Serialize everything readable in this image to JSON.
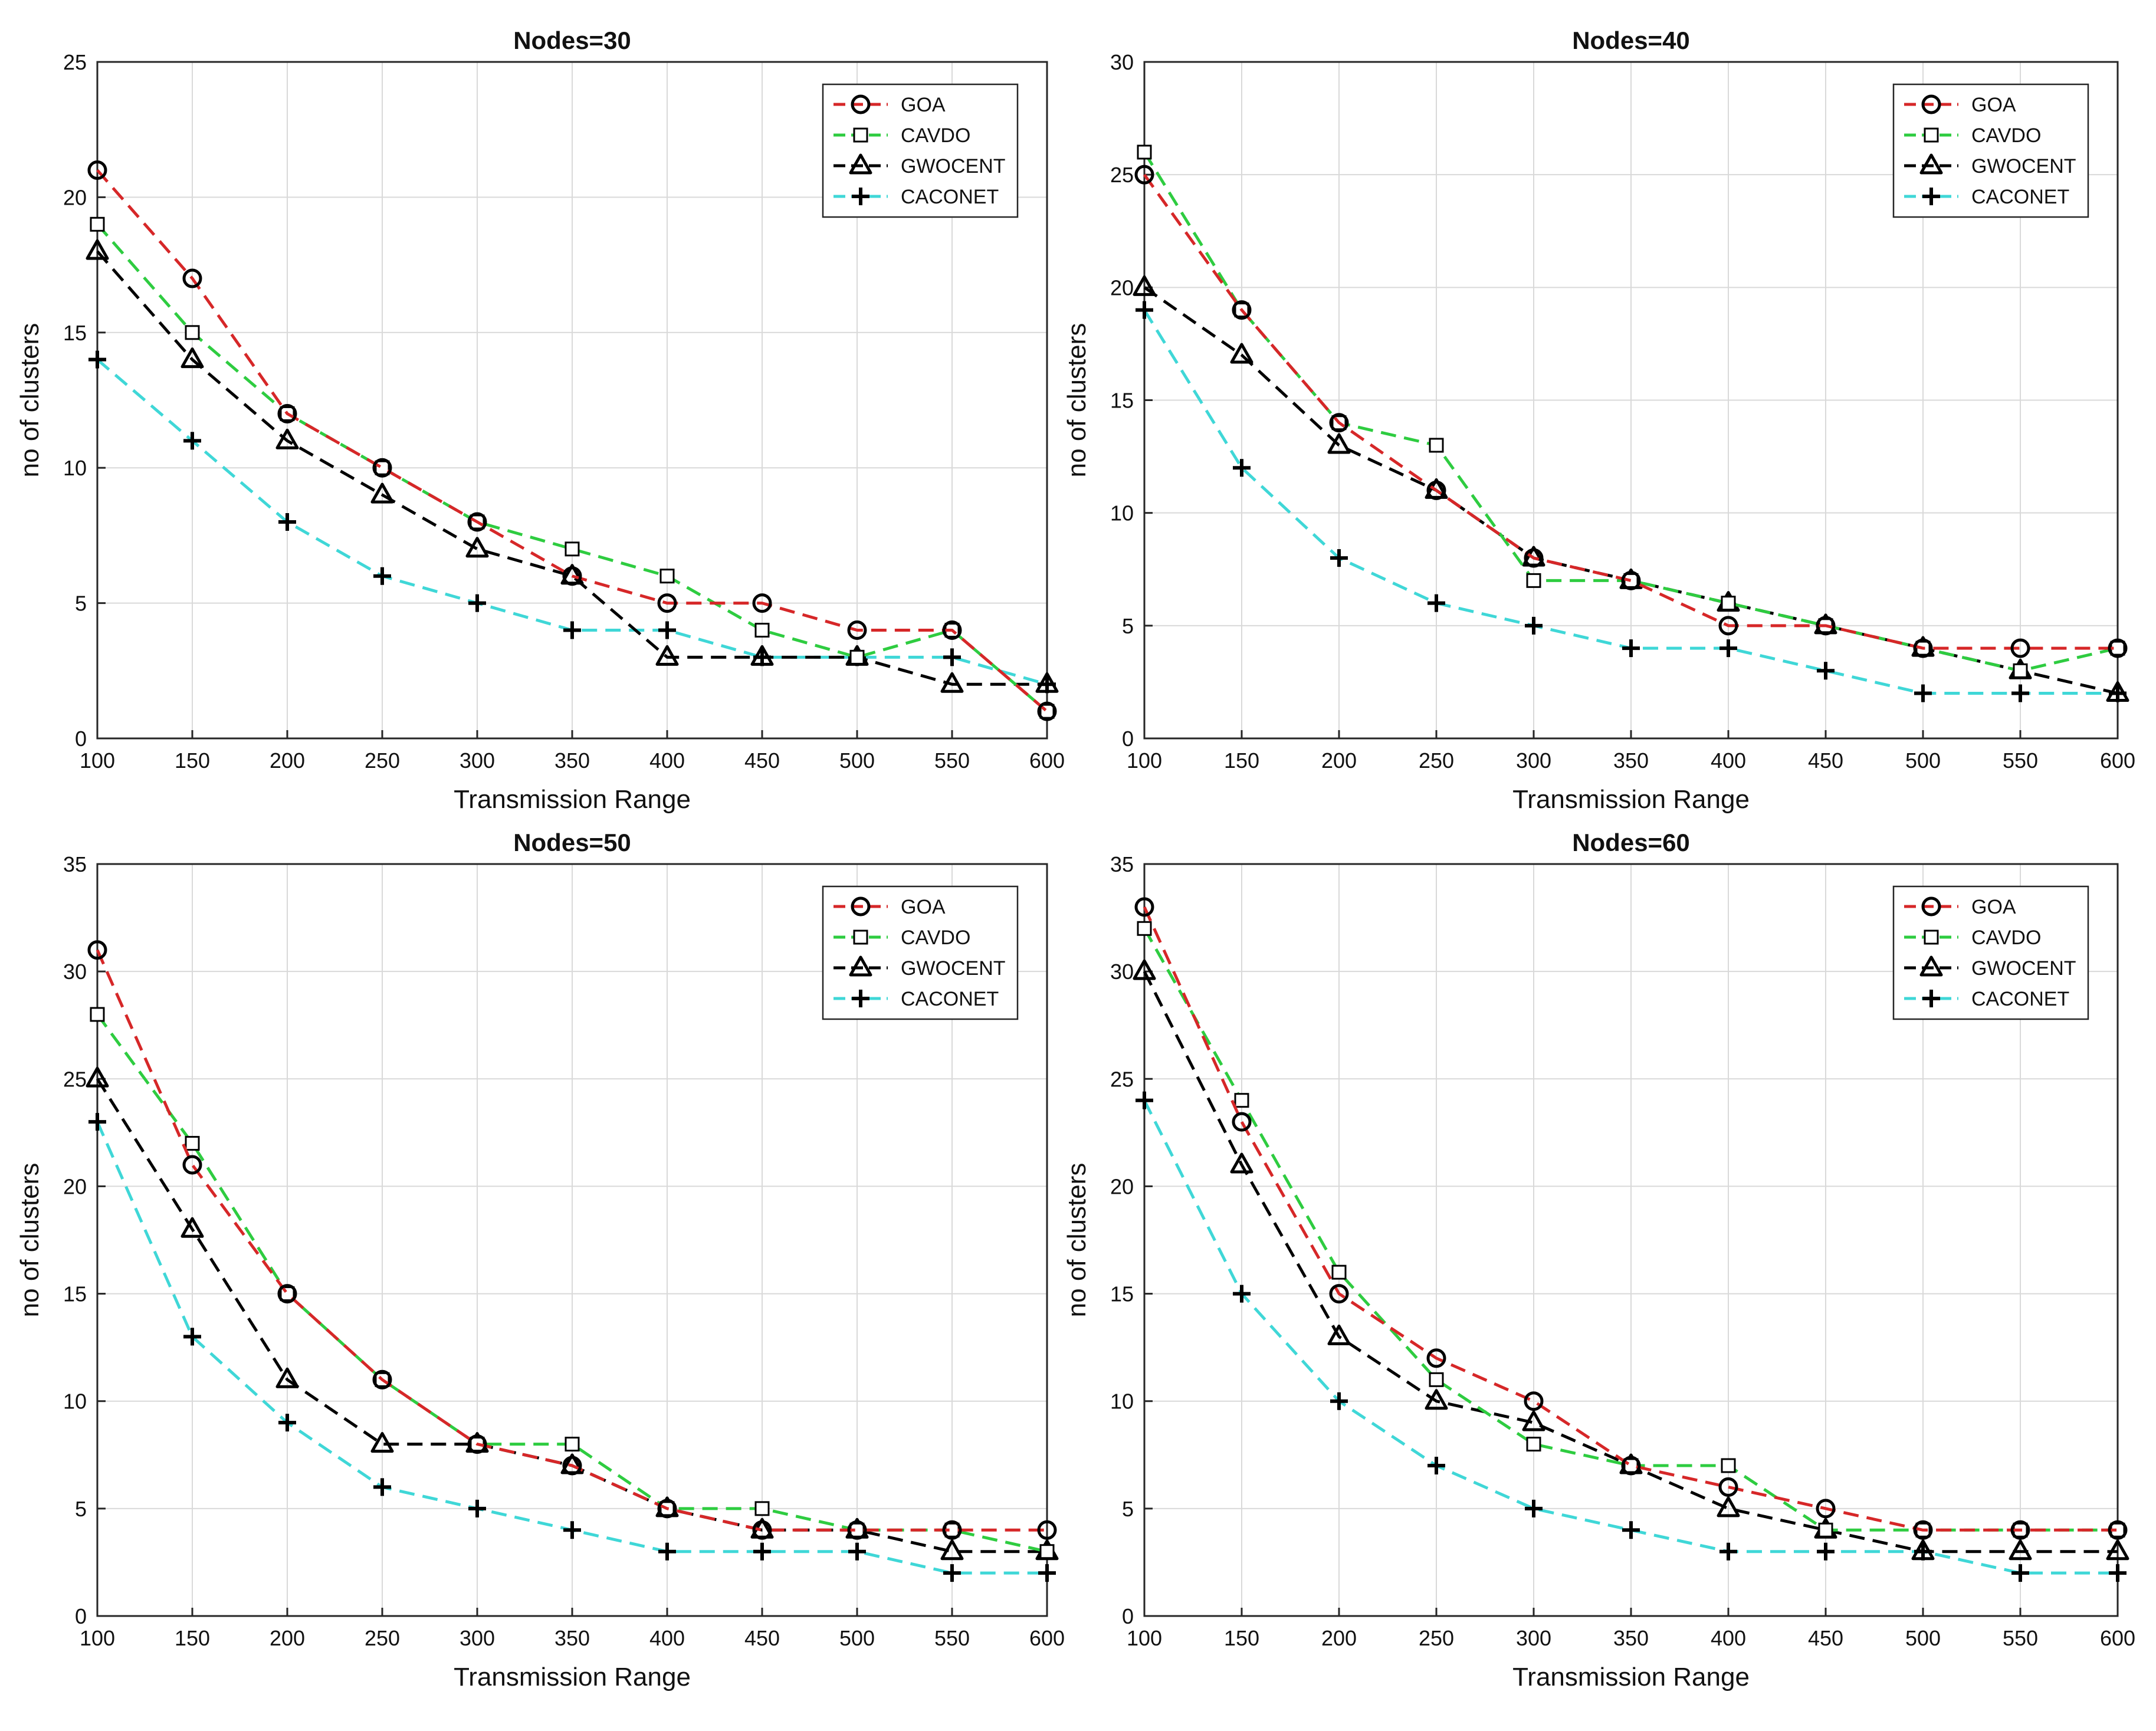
{
  "colors": {
    "GOA": "#d62728",
    "CAVDO": "#2ecc40",
    "GWOCENT": "#000000",
    "CACONET": "#3fd7d7",
    "grid": "#d9d9d9",
    "axis": "#262626"
  },
  "chart_data": [
    {
      "type": "line",
      "title": "Nodes=30",
      "xlabel": "Transmission Range",
      "ylabel": "no of clusters",
      "x": [
        100,
        150,
        200,
        250,
        300,
        350,
        400,
        450,
        500,
        550,
        600
      ],
      "xlim": [
        100,
        600
      ],
      "ylim": [
        0,
        25
      ],
      "yticks": [
        0,
        5,
        10,
        15,
        20,
        25
      ],
      "grid": true,
      "legend_position": "top-right",
      "series": [
        {
          "name": "GOA",
          "marker": "circle",
          "values": [
            21,
            17,
            12,
            10,
            8,
            6,
            5,
            5,
            4,
            4,
            1
          ]
        },
        {
          "name": "CAVDO",
          "marker": "square",
          "values": [
            19,
            15,
            12,
            10,
            8,
            7,
            6,
            4,
            3,
            4,
            1
          ]
        },
        {
          "name": "GWOCENT",
          "marker": "triangle",
          "values": [
            18,
            14,
            11,
            9,
            7,
            6,
            3,
            3,
            3,
            2,
            2
          ]
        },
        {
          "name": "CACONET",
          "marker": "plus",
          "values": [
            14,
            11,
            8,
            6,
            5,
            4,
            4,
            3,
            3,
            3,
            2
          ]
        }
      ]
    },
    {
      "type": "line",
      "title": "Nodes=40",
      "xlabel": "Transmission Range",
      "ylabel": "no of clusters",
      "x": [
        100,
        150,
        200,
        250,
        300,
        350,
        400,
        450,
        500,
        550,
        600
      ],
      "xlim": [
        100,
        600
      ],
      "ylim": [
        0,
        30
      ],
      "yticks": [
        0,
        5,
        10,
        15,
        20,
        25,
        30
      ],
      "grid": true,
      "legend_position": "top-right",
      "series": [
        {
          "name": "GOA",
          "marker": "circle",
          "values": [
            25,
            19,
            14,
            11,
            8,
            7,
            5,
            5,
            4,
            4,
            4
          ]
        },
        {
          "name": "CAVDO",
          "marker": "square",
          "values": [
            26,
            19,
            14,
            13,
            7,
            7,
            6,
            5,
            4,
            3,
            4
          ]
        },
        {
          "name": "GWOCENT",
          "marker": "triangle",
          "values": [
            20,
            17,
            13,
            11,
            8,
            7,
            6,
            5,
            4,
            3,
            2
          ]
        },
        {
          "name": "CACONET",
          "marker": "plus",
          "values": [
            19,
            12,
            8,
            6,
            5,
            4,
            4,
            3,
            2,
            2,
            2
          ]
        }
      ]
    },
    {
      "type": "line",
      "title": "Nodes=50",
      "xlabel": "Transmission Range",
      "ylabel": "no of clusters",
      "x": [
        100,
        150,
        200,
        250,
        300,
        350,
        400,
        450,
        500,
        550,
        600
      ],
      "xlim": [
        100,
        600
      ],
      "ylim": [
        0,
        35
      ],
      "yticks": [
        0,
        5,
        10,
        15,
        20,
        25,
        30,
        35
      ],
      "grid": true,
      "legend_position": "top-right",
      "series": [
        {
          "name": "GOA",
          "marker": "circle",
          "values": [
            31,
            21,
            15,
            11,
            8,
            7,
            5,
            4,
            4,
            4,
            4
          ]
        },
        {
          "name": "CAVDO",
          "marker": "square",
          "values": [
            28,
            22,
            15,
            11,
            8,
            8,
            5,
            5,
            4,
            4,
            3
          ]
        },
        {
          "name": "GWOCENT",
          "marker": "triangle",
          "values": [
            25,
            18,
            11,
            8,
            8,
            7,
            5,
            4,
            4,
            3,
            3
          ]
        },
        {
          "name": "CACONET",
          "marker": "plus",
          "values": [
            23,
            13,
            9,
            6,
            5,
            4,
            3,
            3,
            3,
            2,
            2
          ]
        }
      ]
    },
    {
      "type": "line",
      "title": "Nodes=60",
      "xlabel": "Transmission Range",
      "ylabel": "no of clusters",
      "x": [
        100,
        150,
        200,
        250,
        300,
        350,
        400,
        450,
        500,
        550,
        600
      ],
      "xlim": [
        100,
        600
      ],
      "ylim": [
        0,
        35
      ],
      "yticks": [
        0,
        5,
        10,
        15,
        20,
        25,
        30,
        35
      ],
      "grid": true,
      "legend_position": "top-right",
      "series": [
        {
          "name": "GOA",
          "marker": "circle",
          "values": [
            33,
            23,
            15,
            12,
            10,
            7,
            6,
            5,
            4,
            4,
            4
          ]
        },
        {
          "name": "CAVDO",
          "marker": "square",
          "values": [
            32,
            24,
            16,
            11,
            8,
            7,
            7,
            4,
            4,
            4,
            4
          ]
        },
        {
          "name": "GWOCENT",
          "marker": "triangle",
          "values": [
            30,
            21,
            13,
            10,
            9,
            7,
            5,
            4,
            3,
            3,
            3
          ]
        },
        {
          "name": "CACONET",
          "marker": "plus",
          "values": [
            24,
            15,
            10,
            7,
            5,
            4,
            3,
            3,
            3,
            2,
            2
          ]
        }
      ]
    }
  ]
}
